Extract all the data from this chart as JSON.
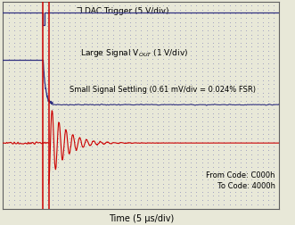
{
  "bg_color": "#e8e8d8",
  "plot_bg_color": "#e8e8d8",
  "grid_color": "#7070b0",
  "border_color": "#606060",
  "xlabel": "Time (5 μs/div)",
  "label_ldac": "̅LDAC Trigger (5 V/div)",
  "label_large_1": "Large Signal V",
  "label_large_2": "OUT",
  "label_large_3": " (1 V/div)",
  "label_small": "Small Signal Settling (0.61 mV/div = 0.024% FSR)",
  "label_code": "From Code: C000h\n  To Code: 4000h",
  "xlim": [
    0,
    10
  ],
  "ylim": [
    0,
    10
  ],
  "blue_color": "#303080",
  "red_color": "#cc0000",
  "font_size_label": 6.5,
  "font_size_axis": 7,
  "font_size_code": 6.0,
  "t_trig1": 1.45,
  "t_trig2": 1.65,
  "ldac_high": 9.5,
  "ldac_low": 8.9,
  "large_pre_y": 7.2,
  "large_post_y": 5.05,
  "small_base_y": 3.2,
  "small_amp": 2.0,
  "small_tau": 0.55,
  "small_freq": 4.0,
  "noise_scale": 0.03
}
